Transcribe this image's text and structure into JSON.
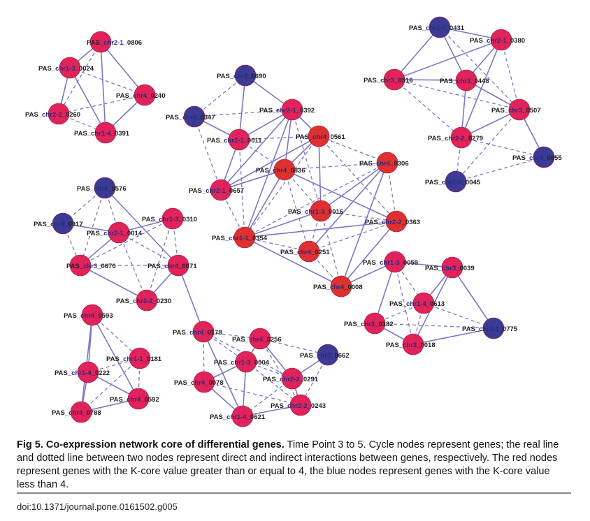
{
  "colors": {
    "red_node": "#e0235a",
    "orange_red_node": "#de3030",
    "blue_node": "#3b3b96",
    "edge": "#7a78c4"
  },
  "caption": {
    "fig_label": "Fig 5. Co-expression network core of differential genes.",
    "text": " Time Point 3 to 5. Cycle nodes represent genes; the real line and dotted line between two nodes represent direct and indirect interactions between genes, respectively. The red nodes represent genes with the K-core value greater than or equal to 4, the blue nodes represent genes with the K-core value less than 4."
  },
  "doi": "doi:10.1371/journal.pone.0161502.g005",
  "network": {
    "nodes": [
      {
        "id": "A1",
        "pre": "PAS_",
        "hl": "chr2-1",
        "suf": "_0806",
        "color": "red"
      },
      {
        "id": "A2",
        "pre": "PAS_",
        "hl": "chr1-3",
        "suf": "_0024",
        "color": "red"
      },
      {
        "id": "A3",
        "pre": "PAS_",
        "hl": "chr4",
        "suf": "_0240",
        "color": "red"
      },
      {
        "id": "A4",
        "pre": "PAS_",
        "hl": "chr2-2",
        "suf": "_0260",
        "color": "red"
      },
      {
        "id": "A5",
        "pre": "PAS_",
        "hl": "chr1-4",
        "suf": "_0391",
        "color": "red"
      },
      {
        "id": "B1",
        "pre": "PAS_",
        "hl": "chr3",
        "suf": "_0690",
        "color": "blue"
      },
      {
        "id": "B2",
        "pre": "PAS_",
        "hl": "chr4",
        "suf": "_0347",
        "color": "blue"
      },
      {
        "id": "B3",
        "pre": "PAS_",
        "hl": "chr2-1",
        "suf": "_0392",
        "color": "red"
      },
      {
        "id": "B4",
        "pre": "PAS_",
        "hl": "chr2-1",
        "suf": "_0011",
        "color": "red"
      },
      {
        "id": "B5",
        "pre": "PAS_",
        "hl": "chr4",
        "suf": "_0561",
        "color": "orange"
      },
      {
        "id": "B6",
        "pre": "PAS_",
        "hl": "chr4",
        "suf": "_0836",
        "color": "orange"
      },
      {
        "id": "B7",
        "pre": "PAS_",
        "hl": "chr4",
        "suf": "_0306",
        "color": "orange"
      },
      {
        "id": "B8",
        "pre": "PAS_",
        "hl": "chr2-1",
        "suf": "_0657",
        "color": "red"
      },
      {
        "id": "B9",
        "pre": "PAS_",
        "hl": "chr1-3",
        "suf": "_0016",
        "color": "orange"
      },
      {
        "id": "B10",
        "pre": "PAS_",
        "hl": "chr2-2",
        "suf": "_0363",
        "color": "orange"
      },
      {
        "id": "B11",
        "pre": "PAS_",
        "hl": "chr1-1",
        "suf": "_0354",
        "color": "orange"
      },
      {
        "id": "B12",
        "pre": "PAS_",
        "hl": "chr4",
        "suf": "_0251",
        "color": "orange"
      },
      {
        "id": "B13",
        "pre": "PAS_",
        "hl": "chr4",
        "suf": "_0008",
        "color": "orange"
      },
      {
        "id": "C1",
        "pre": "PAS_",
        "hl": "chr1-4",
        "suf": "_0431",
        "color": "blue"
      },
      {
        "id": "C2",
        "pre": "PAS_",
        "hl": "chr2-1",
        "suf": "_0380",
        "color": "red"
      },
      {
        "id": "C3",
        "pre": "PAS_",
        "hl": "chr3",
        "suf": "_0516",
        "color": "red"
      },
      {
        "id": "C4",
        "pre": "PAS_",
        "hl": "chr3",
        "suf": "_0448",
        "color": "red"
      },
      {
        "id": "C5",
        "pre": "PAS_",
        "hl": "chr3",
        "suf": "_0507",
        "color": "red"
      },
      {
        "id": "C6",
        "pre": "PAS_",
        "hl": "chr2-2",
        "suf": "_0279",
        "color": "red"
      },
      {
        "id": "C7",
        "pre": "PAS_",
        "hl": "chr4",
        "suf": "_0055",
        "color": "blue"
      },
      {
        "id": "C8",
        "pre": "PAS_",
        "hl": "chr1-4",
        "suf": "_0045",
        "color": "blue"
      },
      {
        "id": "D1",
        "pre": "PAS_",
        "hl": "chr4",
        "suf": "_0576",
        "color": "blue"
      },
      {
        "id": "D2",
        "pre": "PAS_",
        "hl": "chr4",
        "suf": "_0917",
        "color": "blue"
      },
      {
        "id": "D3",
        "pre": "PAS_",
        "hl": "chr1-3",
        "suf": "_0310",
        "color": "red"
      },
      {
        "id": "D4",
        "pre": "PAS_",
        "hl": "chr2-1",
        "suf": "_0014",
        "color": "red"
      },
      {
        "id": "D5",
        "pre": "PAS_",
        "hl": "chr3",
        "suf": "_0670",
        "color": "red"
      },
      {
        "id": "D6",
        "pre": "PAS_",
        "hl": "chr4",
        "suf": "_0671",
        "color": "red"
      },
      {
        "id": "D7",
        "pre": "PAS_",
        "hl": "chr2-2",
        "suf": "_0230",
        "color": "red"
      },
      {
        "id": "E1",
        "pre": "PAS_",
        "hl": "chr1-3",
        "suf": "_0059",
        "color": "red"
      },
      {
        "id": "E2",
        "pre": "PAS_",
        "hl": "chr3",
        "suf": "_0039",
        "color": "red"
      },
      {
        "id": "E3",
        "pre": "PAS_",
        "hl": "chr1-4",
        "suf": "_0613",
        "color": "red"
      },
      {
        "id": "E4",
        "pre": "PAS_",
        "hl": "chr3",
        "suf": "_0182",
        "color": "red"
      },
      {
        "id": "E5",
        "pre": "PAS_",
        "hl": "chr2-1",
        "suf": "_0775",
        "color": "blue"
      },
      {
        "id": "E6",
        "pre": "PAS_",
        "hl": "chr3",
        "suf": "_0018",
        "color": "red"
      },
      {
        "id": "F1",
        "pre": "PAS_",
        "hl": "chr4",
        "suf": "_0593",
        "color": "red"
      },
      {
        "id": "F2",
        "pre": "PAS_",
        "hl": "chr1-1",
        "suf": "_0181",
        "color": "red"
      },
      {
        "id": "F3",
        "pre": "PAS_",
        "hl": "chr1-4",
        "suf": "_0222",
        "color": "red"
      },
      {
        "id": "F4",
        "pre": "PAS_",
        "hl": "chr4",
        "suf": "_0592",
        "color": "red"
      },
      {
        "id": "F5",
        "pre": "PAS_",
        "hl": "chr4",
        "suf": "_0788",
        "color": "red"
      },
      {
        "id": "G1",
        "pre": "PAS_",
        "hl": "chr4",
        "suf": "_0178",
        "color": "red"
      },
      {
        "id": "G2",
        "pre": "PAS_",
        "hl": "chr4",
        "suf": "_0256",
        "color": "red"
      },
      {
        "id": "G3",
        "pre": "PAS_",
        "hl": "chr3",
        "suf": "_0662",
        "color": "blue"
      },
      {
        "id": "G4",
        "pre": "PAS_",
        "hl": "chr1-3",
        "suf": "_0004",
        "color": "red"
      },
      {
        "id": "G5",
        "pre": "PAS_",
        "hl": "chr2-2",
        "suf": "_0291",
        "color": "red"
      },
      {
        "id": "G6",
        "pre": "PAS_",
        "hl": "chr4",
        "suf": "_0078",
        "color": "red"
      },
      {
        "id": "G7",
        "pre": "PAS_",
        "hl": "chr2-2",
        "suf": "_0243",
        "color": "red"
      },
      {
        "id": "G8",
        "pre": "PAS_",
        "hl": "chr1-4",
        "suf": "_0621",
        "color": "red"
      }
    ],
    "edges": [
      [
        "A1",
        "A2",
        "solid"
      ],
      [
        "A1",
        "A3",
        "solid"
      ],
      [
        "A1",
        "A5",
        "solid"
      ],
      [
        "A1",
        "A4",
        "dashed"
      ],
      [
        "A2",
        "A4",
        "solid"
      ],
      [
        "A2",
        "A5",
        "solid"
      ],
      [
        "A2",
        "A3",
        "dashed"
      ],
      [
        "A3",
        "A5",
        "solid"
      ],
      [
        "A3",
        "A4",
        "dashed"
      ],
      [
        "A4",
        "A5",
        "dashed"
      ],
      [
        "B1",
        "B3",
        "solid"
      ],
      [
        "B1",
        "B2",
        "dashed"
      ],
      [
        "B1",
        "B4",
        "solid"
      ],
      [
        "B2",
        "B3",
        "dashed"
      ],
      [
        "B2",
        "B4",
        "solid"
      ],
      [
        "B2",
        "B8",
        "dashed"
      ],
      [
        "B3",
        "B4",
        "solid"
      ],
      [
        "B3",
        "B5",
        "solid"
      ],
      [
        "B3",
        "B6",
        "solid"
      ],
      [
        "B3",
        "B8",
        "solid"
      ],
      [
        "B3",
        "B11",
        "solid"
      ],
      [
        "B3",
        "B9",
        "dashed"
      ],
      [
        "B4",
        "B6",
        "dashed"
      ],
      [
        "B4",
        "B8",
        "solid"
      ],
      [
        "B4",
        "B5",
        "dashed"
      ],
      [
        "B4",
        "B11",
        "dashed"
      ],
      [
        "B5",
        "B6",
        "solid"
      ],
      [
        "B5",
        "B7",
        "dashed"
      ],
      [
        "B5",
        "B8",
        "solid"
      ],
      [
        "B5",
        "B9",
        "solid"
      ],
      [
        "B5",
        "B10",
        "dashed"
      ],
      [
        "B5",
        "B11",
        "dashed"
      ],
      [
        "B6",
        "B7",
        "dashed"
      ],
      [
        "B6",
        "B8",
        "solid"
      ],
      [
        "B6",
        "B9",
        "dashed"
      ],
      [
        "B6",
        "B10",
        "solid"
      ],
      [
        "B6",
        "B11",
        "solid"
      ],
      [
        "B6",
        "B12",
        "dashed"
      ],
      [
        "B7",
        "B9",
        "solid"
      ],
      [
        "B7",
        "B10",
        "dashed"
      ],
      [
        "B7",
        "B11",
        "dashed"
      ],
      [
        "B7",
        "B12",
        "solid"
      ],
      [
        "B7",
        "B13",
        "solid"
      ],
      [
        "B8",
        "B11",
        "dashed"
      ],
      [
        "B8",
        "B6",
        "solid"
      ],
      [
        "B9",
        "B10",
        "dashed"
      ],
      [
        "B9",
        "B11",
        "solid"
      ],
      [
        "B9",
        "B12",
        "dashed"
      ],
      [
        "B9",
        "B13",
        "dashed"
      ],
      [
        "B10",
        "B11",
        "solid"
      ],
      [
        "B10",
        "B13",
        "solid"
      ],
      [
        "B10",
        "B12",
        "dashed"
      ],
      [
        "B11",
        "B12",
        "dashed"
      ],
      [
        "B11",
        "B13",
        "solid"
      ],
      [
        "B12",
        "B13",
        "dashed"
      ],
      [
        "C1",
        "C2",
        "solid"
      ],
      [
        "C1",
        "C3",
        "solid"
      ],
      [
        "C1",
        "C4",
        "solid"
      ],
      [
        "C1",
        "C5",
        "dashed"
      ],
      [
        "C2",
        "C3",
        "solid"
      ],
      [
        "C2",
        "C4",
        "solid"
      ],
      [
        "C2",
        "C6",
        "solid"
      ],
      [
        "C2",
        "C5",
        "dashed"
      ],
      [
        "C3",
        "C4",
        "solid"
      ],
      [
        "C3",
        "C5",
        "dashed"
      ],
      [
        "C3",
        "C6",
        "dashed"
      ],
      [
        "C4",
        "C5",
        "solid"
      ],
      [
        "C4",
        "C6",
        "solid"
      ],
      [
        "C5",
        "C6",
        "solid"
      ],
      [
        "C5",
        "C7",
        "solid"
      ],
      [
        "C5",
        "C8",
        "dashed"
      ],
      [
        "C6",
        "C7",
        "dashed"
      ],
      [
        "C6",
        "C8",
        "dashed"
      ],
      [
        "C7",
        "C8",
        "dashed"
      ],
      [
        "D1",
        "D2",
        "dashed"
      ],
      [
        "D1",
        "D4",
        "dashed"
      ],
      [
        "D1",
        "D5",
        "dashed"
      ],
      [
        "D1",
        "D6",
        "solid"
      ],
      [
        "D2",
        "D4",
        "solid"
      ],
      [
        "D2",
        "D5",
        "dashed"
      ],
      [
        "D3",
        "D4",
        "solid"
      ],
      [
        "D3",
        "D6",
        "dashed"
      ],
      [
        "D3",
        "D7",
        "dashed"
      ],
      [
        "D3",
        "D5",
        "dashed"
      ],
      [
        "D4",
        "D5",
        "solid"
      ],
      [
        "D4",
        "D6",
        "dashed"
      ],
      [
        "D4",
        "D7",
        "dashed"
      ],
      [
        "D5",
        "D6",
        "dashed"
      ],
      [
        "D5",
        "D7",
        "solid"
      ],
      [
        "D6",
        "D7",
        "solid"
      ],
      [
        "D6",
        "G1",
        "solid"
      ],
      [
        "E1",
        "E2",
        "solid"
      ],
      [
        "E1",
        "E3",
        "dashed"
      ],
      [
        "E1",
        "E4",
        "solid"
      ],
      [
        "E1",
        "E6",
        "dashed"
      ],
      [
        "E2",
        "E3",
        "solid"
      ],
      [
        "E2",
        "E5",
        "solid"
      ],
      [
        "E2",
        "E6",
        "solid"
      ],
      [
        "E3",
        "E4",
        "dashed"
      ],
      [
        "E3",
        "E5",
        "dashed"
      ],
      [
        "E3",
        "E6",
        "dashed"
      ],
      [
        "E4",
        "E6",
        "solid"
      ],
      [
        "E4",
        "E5",
        "dashed"
      ],
      [
        "E5",
        "E6",
        "solid"
      ],
      [
        "B13",
        "E1",
        "solid"
      ],
      [
        "F1",
        "F2",
        "dashed"
      ],
      [
        "F1",
        "F3",
        "solid"
      ],
      [
        "F1",
        "F4",
        "solid"
      ],
      [
        "F1",
        "F5",
        "solid"
      ],
      [
        "F2",
        "F3",
        "dashed"
      ],
      [
        "F2",
        "F4",
        "dashed"
      ],
      [
        "F2",
        "F5",
        "dashed"
      ],
      [
        "F3",
        "F4",
        "solid"
      ],
      [
        "F3",
        "F5",
        "solid"
      ],
      [
        "F4",
        "F5",
        "solid"
      ],
      [
        "G1",
        "G2",
        "dashed"
      ],
      [
        "G1",
        "G4",
        "dashed"
      ],
      [
        "G1",
        "G6",
        "dashed"
      ],
      [
        "G1",
        "G8",
        "solid"
      ],
      [
        "G1",
        "G5",
        "dashed"
      ],
      [
        "G2",
        "G3",
        "dashed"
      ],
      [
        "G2",
        "G4",
        "solid"
      ],
      [
        "G2",
        "G5",
        "solid"
      ],
      [
        "G2",
        "G7",
        "dashed"
      ],
      [
        "G3",
        "G5",
        "solid"
      ],
      [
        "G3",
        "G7",
        "dashed"
      ],
      [
        "G4",
        "G5",
        "dashed"
      ],
      [
        "G4",
        "G6",
        "solid"
      ],
      [
        "G4",
        "G8",
        "solid"
      ],
      [
        "G4",
        "G7",
        "dashed"
      ],
      [
        "G5",
        "G7",
        "solid"
      ],
      [
        "G5",
        "G8",
        "dashed"
      ],
      [
        "G6",
        "G8",
        "solid"
      ],
      [
        "G6",
        "G7",
        "dashed"
      ],
      [
        "G7",
        "G8",
        "solid"
      ]
    ]
  }
}
